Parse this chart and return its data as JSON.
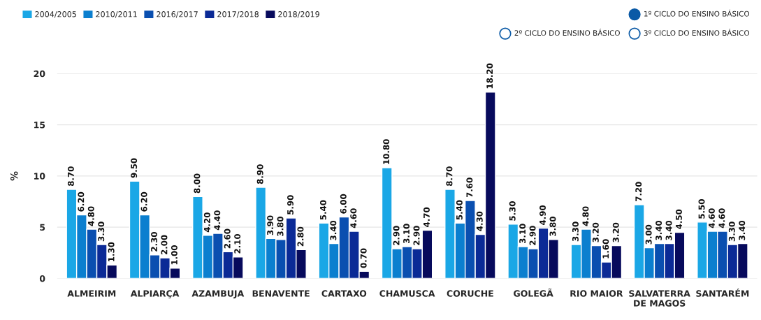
{
  "chart_data": {
    "type": "bar",
    "ylabel": "%",
    "categories": [
      "ALMEIRIM",
      "ALPIARÇA",
      "AZAMBUJA",
      "BENAVENTE",
      "CARTAXO",
      "CHAMUSCA",
      "CORUCHE",
      "GOLEGÃ",
      "RIO MAIOR",
      "SALVATERRA\nDE MAGOS",
      "SANTARÉM"
    ],
    "series": [
      {
        "name": "2004/2005",
        "color": "#1aa7e6",
        "values": [
          8.7,
          9.5,
          8.0,
          8.9,
          5.4,
          10.8,
          8.7,
          5.3,
          3.3,
          7.2,
          5.5
        ],
        "value_labels": [
          "8.70",
          "9.50",
          "8.00",
          "8.90",
          "5.40",
          "10.80",
          "8.70",
          "5.30",
          "3.30",
          "7.20",
          "5.50"
        ]
      },
      {
        "name": "2010/2011",
        "color": "#0b7fcf",
        "values": [
          6.2,
          6.2,
          4.2,
          3.9,
          3.4,
          2.9,
          5.4,
          3.1,
          4.8,
          3.0,
          4.6
        ],
        "value_labels": [
          "6.20",
          "6.20",
          "4.20",
          "3.90",
          "3.40",
          "2.90",
          "5.40",
          "3.10",
          "4.80",
          "3.00",
          "4.60"
        ]
      },
      {
        "name": "2016/2017",
        "color": "#0a4fb0",
        "values": [
          4.8,
          2.3,
          4.4,
          3.8,
          6.0,
          3.1,
          7.6,
          2.9,
          3.2,
          3.4,
          4.6
        ],
        "value_labels": [
          "4.80",
          "2.30",
          "4.40",
          "3.80",
          "6.00",
          "3.10",
          "7.60",
          "2.90",
          "3.20",
          "3.40",
          "4.60"
        ]
      },
      {
        "name": "2017/2018",
        "color": "#0b2a96",
        "values": [
          3.3,
          2.0,
          2.6,
          5.9,
          4.6,
          2.9,
          4.3,
          4.9,
          1.6,
          3.4,
          3.3
        ],
        "value_labels": [
          "3.30",
          "2.00",
          "2.60",
          "5.90",
          "4.60",
          "2.90",
          "4.30",
          "4.90",
          "1.60",
          "3.40",
          "3.30"
        ]
      },
      {
        "name": "2018/2019",
        "color": "#070a5c",
        "values": [
          1.3,
          1.0,
          2.1,
          2.8,
          0.7,
          4.7,
          18.2,
          3.8,
          3.2,
          4.5,
          3.4
        ],
        "value_labels": [
          "1.30",
          "1.00",
          "2.10",
          "2.80",
          "0.70",
          "4.70",
          "18.20",
          "3.80",
          "3.20",
          "4.50",
          "3.40"
        ]
      }
    ],
    "ylim": [
      0,
      20
    ],
    "yticks": [
      0,
      5,
      10,
      15,
      20
    ],
    "grid": "y",
    "legend": "top left",
    "annotations": [
      "1º CICLO DO ENSINO BÁSICO",
      "2º CICLO DO ENSINO BÁSICO",
      "3º CICLO DO ENSINO BÁSICO"
    ]
  }
}
